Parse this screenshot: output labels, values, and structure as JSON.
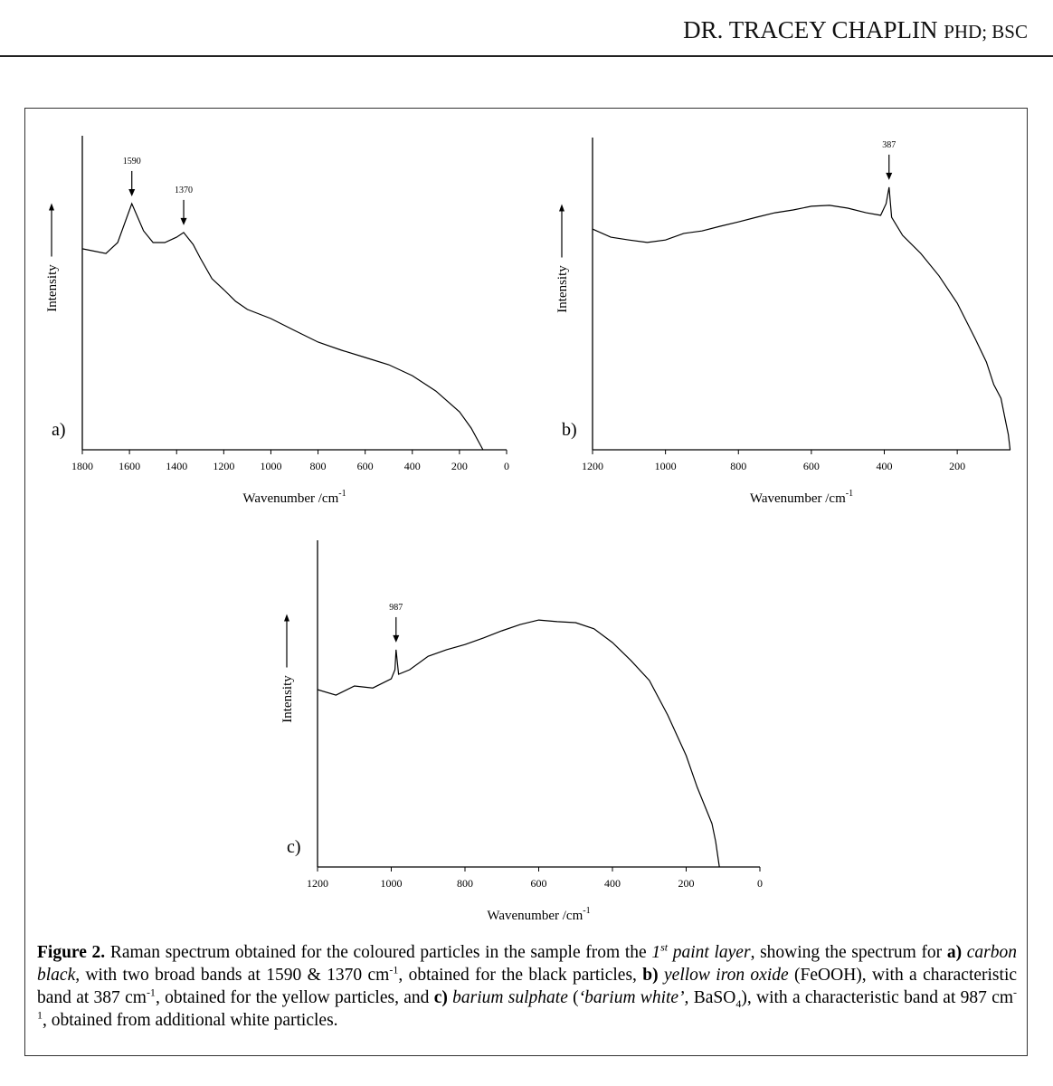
{
  "header": {
    "name": "DR. TRACEY CHAPLIN",
    "credentials": "PHD; BSC"
  },
  "chart_data": [
    {
      "type": "line",
      "label": "a)",
      "ylabel": "Intensity",
      "xlabel": {
        "text": "Wavenumber /cm",
        "sup": "-1"
      },
      "xlim": [
        1800,
        0
      ],
      "xticks": [
        1800,
        1600,
        1400,
        1200,
        1000,
        800,
        600,
        400,
        200,
        0
      ],
      "ylim": [
        0,
        100
      ],
      "color": "#000000",
      "annotations": [
        1590,
        1370
      ],
      "x": [
        1800,
        1700,
        1650,
        1590,
        1540,
        1500,
        1450,
        1400,
        1370,
        1330,
        1300,
        1250,
        1200,
        1150,
        1100,
        1000,
        900,
        800,
        700,
        600,
        500,
        400,
        300,
        200,
        150,
        100
      ],
      "values": [
        64,
        62.5,
        66,
        78.4,
        69.7,
        66,
        66,
        67.7,
        69.2,
        65.4,
        61.1,
        54.5,
        51,
        47.3,
        44.7,
        41.8,
        38,
        34.3,
        31.7,
        29.4,
        27.1,
        23.6,
        18.7,
        12.1,
        6.9,
        0
      ]
    },
    {
      "type": "line",
      "label": "b)",
      "ylabel": "Intensity",
      "xlabel": {
        "text": "Wavenumber /cm",
        "sup": "-1"
      },
      "xlim": [
        1200,
        54
      ],
      "xticks": [
        1200,
        1000,
        800,
        600,
        400,
        200
      ],
      "ylim": [
        0,
        100
      ],
      "color": "#000000",
      "annotations": [
        387
      ],
      "x": [
        1200,
        1150,
        1100,
        1050,
        1000,
        950,
        900,
        850,
        800,
        750,
        700,
        650,
        600,
        550,
        500,
        450,
        410,
        395,
        387,
        380,
        350,
        300,
        250,
        200,
        150,
        120,
        100,
        80,
        70,
        60,
        55
      ],
      "values": [
        70.7,
        68.1,
        67.2,
        66.4,
        67.2,
        69.3,
        70.1,
        71.6,
        73,
        74.5,
        75.9,
        76.8,
        78,
        78.3,
        77.4,
        75.9,
        75.1,
        78.8,
        84.1,
        74.5,
        68.7,
        62.9,
        55.7,
        47,
        35.4,
        28.1,
        20.9,
        16.5,
        10.7,
        4.9,
        0
      ]
    },
    {
      "type": "line",
      "label": "c)",
      "ylabel": "Intensity",
      "xlabel": {
        "text": "Wavenumber /cm",
        "sup": "-1"
      },
      "xlim": [
        1200,
        0
      ],
      "xticks": [
        1200,
        1000,
        800,
        600,
        400,
        200,
        0
      ],
      "ylim": [
        0,
        100
      ],
      "color": "#000000",
      "annotations": [
        987
      ],
      "x": [
        1200,
        1150,
        1100,
        1050,
        1000,
        990,
        987,
        980,
        950,
        900,
        850,
        800,
        750,
        700,
        650,
        600,
        550,
        500,
        450,
        400,
        350,
        300,
        250,
        200,
        170,
        150,
        130,
        120,
        110
      ],
      "values": [
        54.3,
        52.6,
        55.4,
        54.8,
        57.6,
        60.4,
        66.5,
        59,
        60.4,
        64.5,
        66.5,
        68.1,
        70.1,
        72.3,
        74.2,
        75.6,
        75.1,
        74.8,
        72.9,
        68.7,
        63.2,
        57.1,
        46.5,
        34.1,
        24.4,
        18.8,
        13.3,
        7.8,
        0
      ]
    }
  ],
  "caption": [
    "Figure 2.",
    " Raman spectrum obtained for the coloured particles in the sample from the ",
    "1",
    "st",
    " paint layer",
    ", showing the spectrum for ",
    "a)",
    " carbon black,",
    " with two broad bands at 1590 & 1370 cm",
    "-1",
    ", obtained for the black particles, ",
    "b)",
    " yellow iron oxide",
    " (FeOOH), with a characteristic band at 387 cm",
    "-1",
    ", obtained for the yellow particles, and ",
    "c)",
    " barium sulphate",
    " (",
    "‘barium white’,",
    " BaSO",
    "4",
    "), with a characteristic band at 987 cm",
    "-1",
    ", obtained from additional white particles."
  ]
}
